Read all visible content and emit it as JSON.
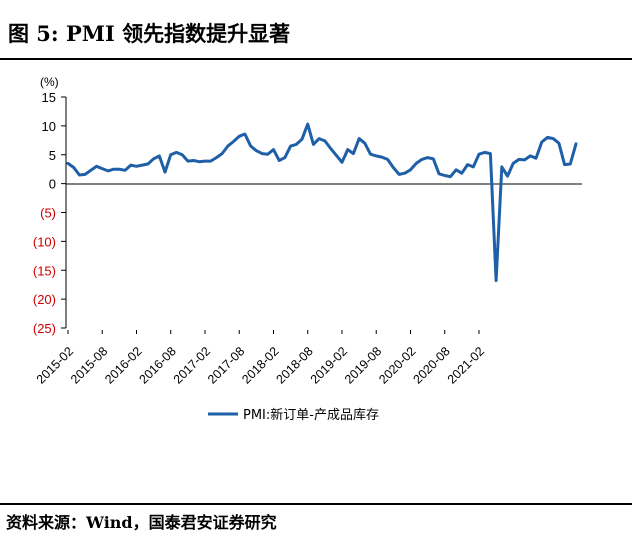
{
  "figure": {
    "title": "图 5: PMI 领先指数提升显著",
    "source": "资料来源：Wind，国泰君安证券研究"
  },
  "chart_data": {
    "type": "line",
    "unit_label": "(%)",
    "ylim": [
      -25,
      15
    ],
    "yticks": [
      15,
      10,
      5,
      0,
      -5,
      -10,
      -15,
      -20,
      -25
    ],
    "ytick_labels": [
      "15",
      "10",
      "5",
      "0",
      "(5)",
      "(10)",
      "(15)",
      "(20)",
      "(25)"
    ],
    "negative_label_color": "#cc0000",
    "x_start": "2015-02",
    "xtick_labels": [
      "2015-02",
      "2015-08",
      "2016-02",
      "2016-08",
      "2017-02",
      "2017-08",
      "2018-02",
      "2018-08",
      "2019-02",
      "2019-08",
      "2020-02",
      "2020-08",
      "2021-02"
    ],
    "legend_position": "bottom",
    "grid": false,
    "series": [
      {
        "name": "PMI:新订单-产成品库存",
        "color": "#1f5fa8",
        "values": [
          3.5,
          2.8,
          1.5,
          1.6,
          2.3,
          3.0,
          2.6,
          2.2,
          2.5,
          2.5,
          2.3,
          3.2,
          3.0,
          3.2,
          3.4,
          4.3,
          4.8,
          2.0,
          5.0,
          5.4,
          5.0,
          3.9,
          4.0,
          3.8,
          3.9,
          3.9,
          4.5,
          5.2,
          6.5,
          7.3,
          8.2,
          8.6,
          6.5,
          5.7,
          5.2,
          5.1,
          5.9,
          4.0,
          4.5,
          6.5,
          6.8,
          7.7,
          10.3,
          6.8,
          7.8,
          7.4,
          6.1,
          4.9,
          3.7,
          5.9,
          5.2,
          7.8,
          7.0,
          5.1,
          4.8,
          4.6,
          4.2,
          2.8,
          1.6,
          1.8,
          2.4,
          3.5,
          4.2,
          4.5,
          4.3,
          1.7,
          1.4,
          1.2,
          2.4,
          1.8,
          3.3,
          2.9,
          5.1,
          5.4,
          5.2,
          -16.8,
          2.9,
          1.3,
          3.5,
          4.2,
          4.1,
          4.8,
          4.4,
          7.2,
          8.0,
          7.8,
          7.0,
          3.3,
          3.4,
          6.9
        ]
      }
    ]
  }
}
